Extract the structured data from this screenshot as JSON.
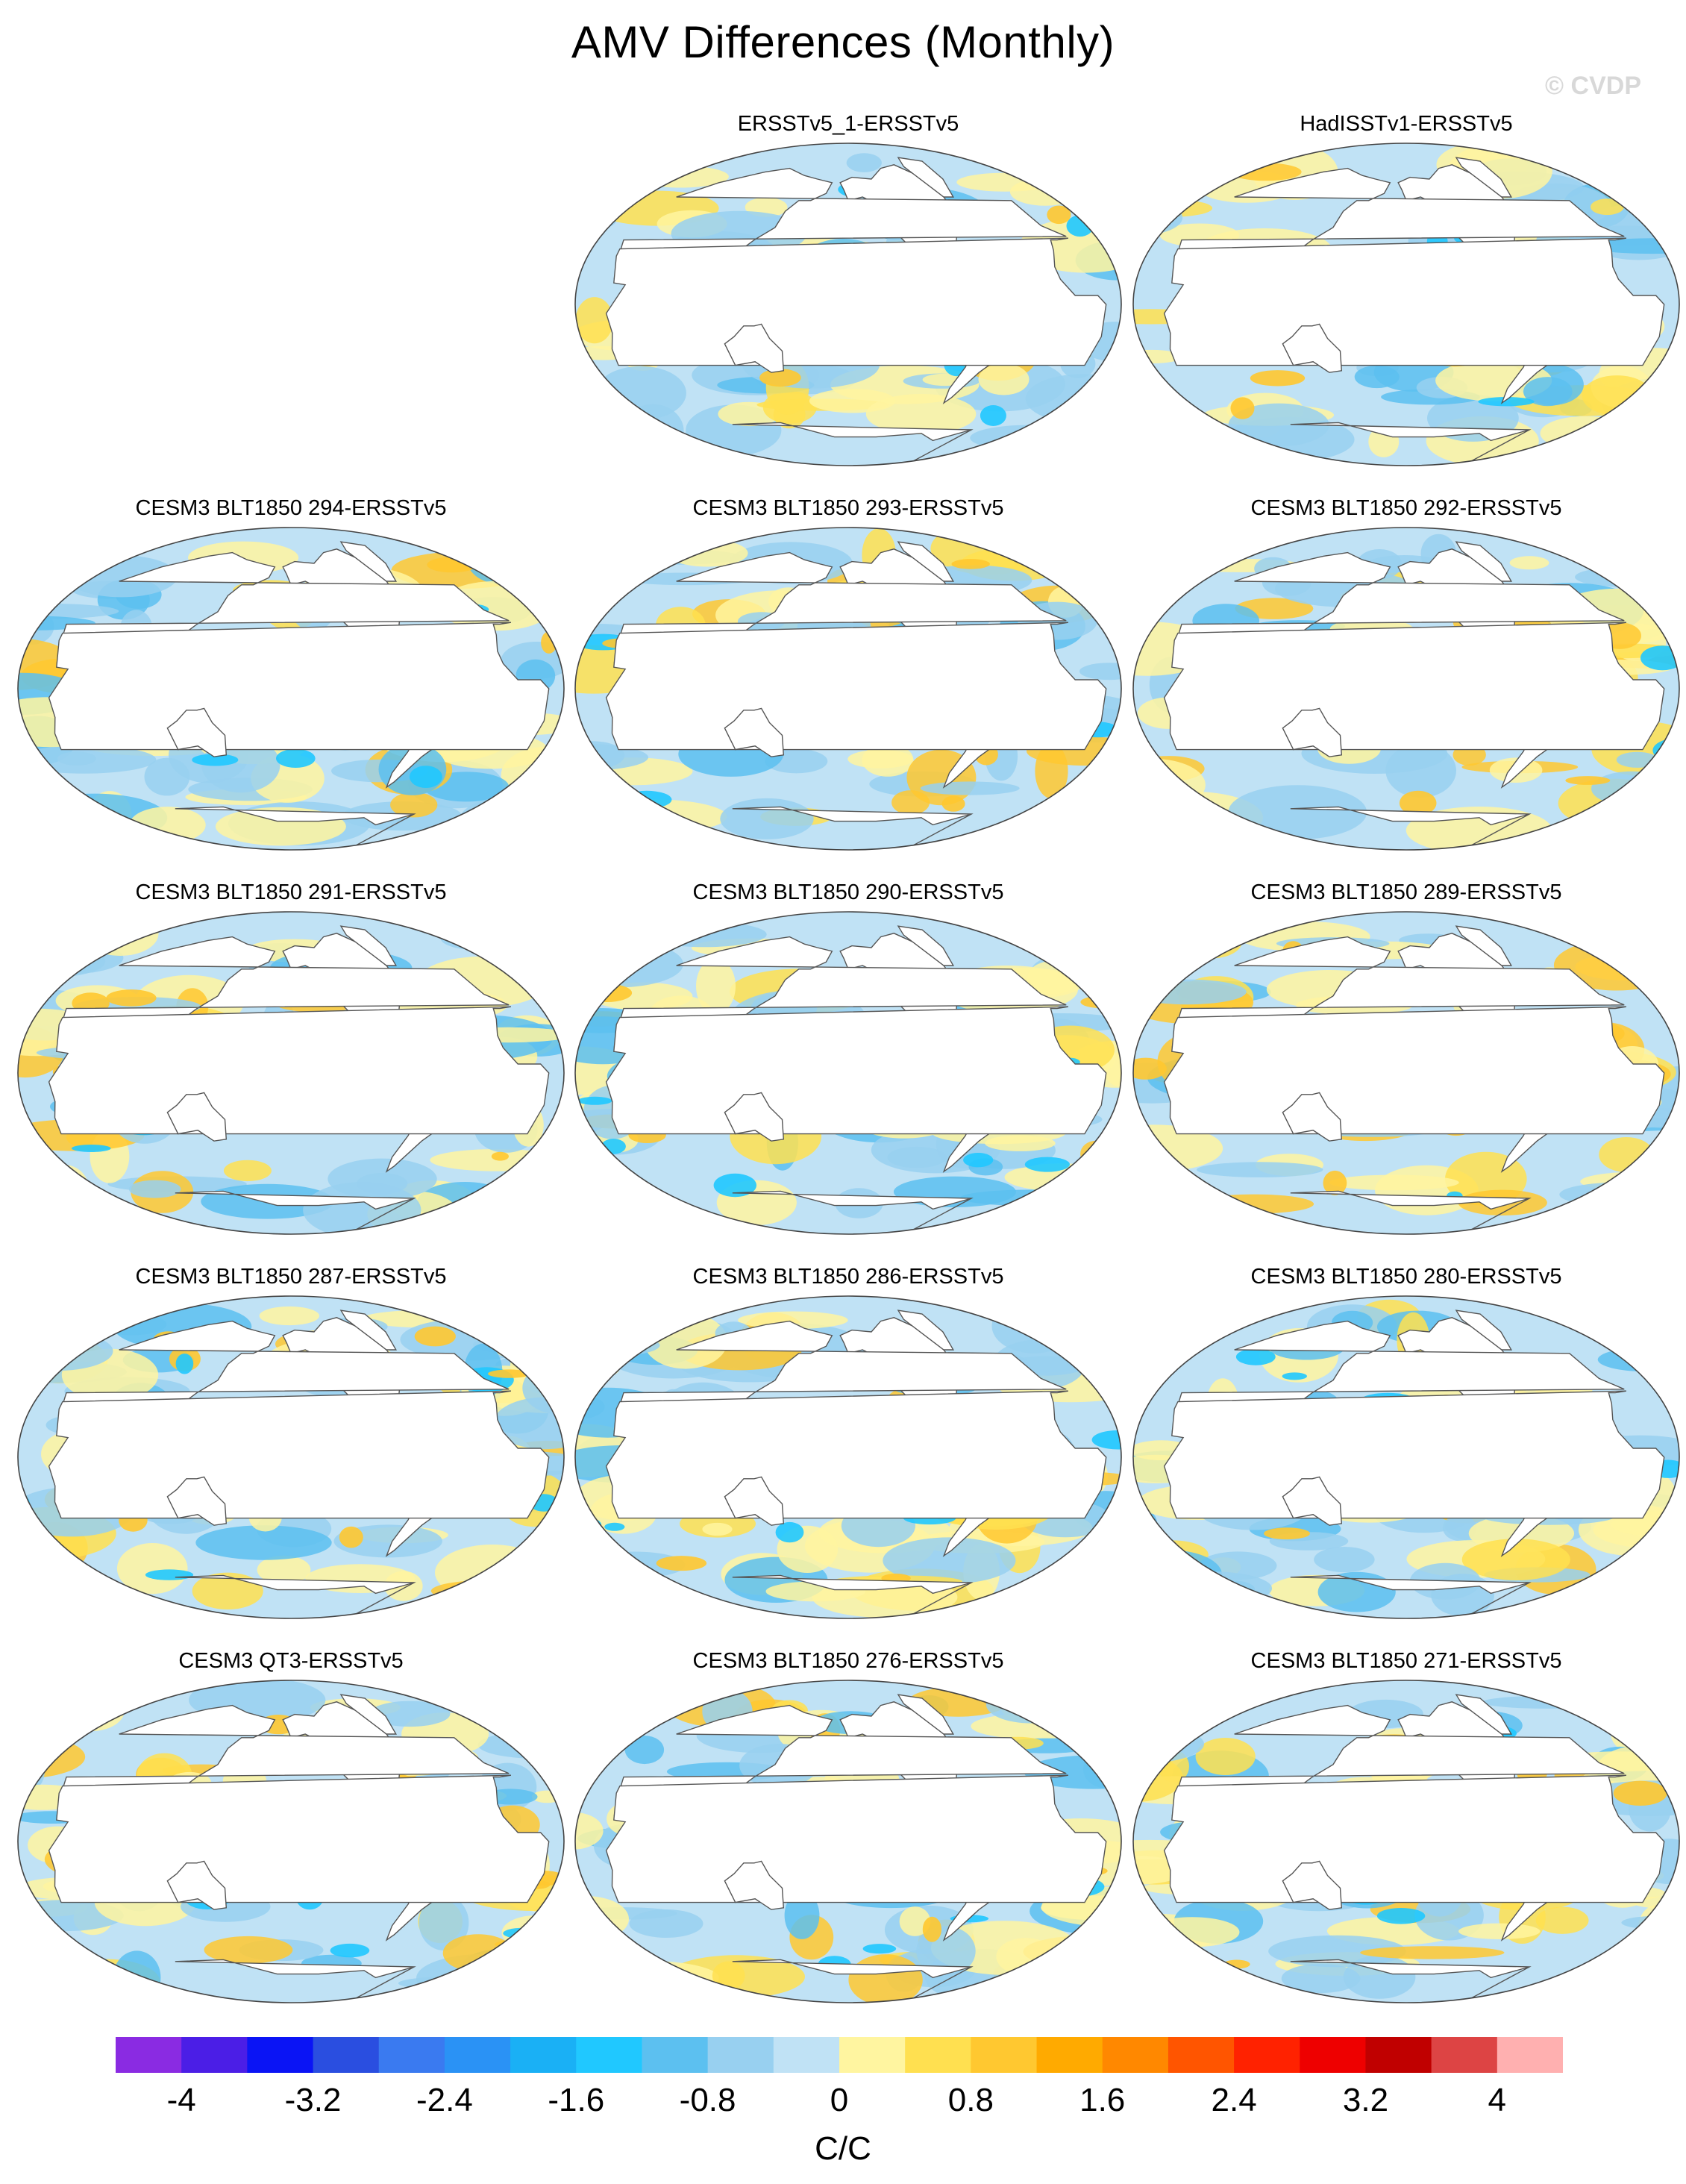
{
  "title": "AMV Differences (Monthly)",
  "watermark": "© CVDP",
  "panels": [
    {
      "label": "ERSSTv5_1-ERSSTv5",
      "pattern": 1
    },
    {
      "label": "HadISSTv1-ERSSTv5",
      "pattern": 2
    },
    {
      "label": "CESM3 BLT1850 294-ERSSTv5",
      "pattern": 3
    },
    {
      "label": "CESM3 BLT1850 293-ERSSTv5",
      "pattern": 4
    },
    {
      "label": "CESM3 BLT1850 292-ERSSTv5",
      "pattern": 5
    },
    {
      "label": "CESM3 BLT1850 291-ERSSTv5",
      "pattern": 6
    },
    {
      "label": "CESM3 BLT1850 290-ERSSTv5",
      "pattern": 7
    },
    {
      "label": "CESM3 BLT1850 289-ERSSTv5",
      "pattern": 8
    },
    {
      "label": "CESM3 BLT1850 287-ERSSTv5",
      "pattern": 9
    },
    {
      "label": "CESM3 BLT1850 286-ERSSTv5",
      "pattern": 10
    },
    {
      "label": "CESM3 BLT1850 280-ERSSTv5",
      "pattern": 11
    },
    {
      "label": "CESM3 QT3-ERSSTv5",
      "pattern": 12
    },
    {
      "label": "CESM3 BLT1850 276-ERSSTv5",
      "pattern": 13
    },
    {
      "label": "CESM3 BLT1850 271-ERSSTv5",
      "pattern": 14
    }
  ],
  "colorbar": {
    "units": "C/C",
    "colors": [
      "#8a2be2",
      "#4b1ee6",
      "#0a14f5",
      "#2a4ee0",
      "#3a7af0",
      "#2a92f5",
      "#1ab0f5",
      "#20c8ff",
      "#5cc0f0",
      "#98d0f0",
      "#c0e2f5",
      "#fff5a0",
      "#ffe050",
      "#ffc830",
      "#ffaa00",
      "#ff8800",
      "#ff5500",
      "#ff2200",
      "#ee0000",
      "#c00000",
      "#dd4444",
      "#ffb0b0"
    ],
    "tick_labels": [
      "-4",
      "-3.2",
      "-2.4",
      "-1.6",
      "-0.8",
      "0",
      "0.8",
      "1.6",
      "2.4",
      "3.2",
      "4"
    ],
    "tick_values": [
      -4,
      -3.2,
      -2.4,
      -1.6,
      -0.8,
      0,
      0.8,
      1.6,
      2.4,
      3.2,
      4
    ]
  }
}
